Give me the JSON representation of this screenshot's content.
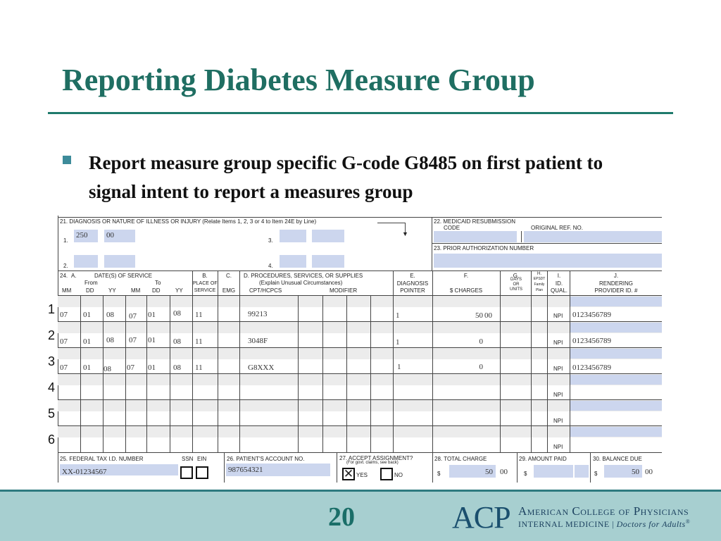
{
  "slide": {
    "title": "Reporting Diabetes Measure Group",
    "bullet": "Report measure group specific G-code G8485 on first patient to signal intent to report a measures group",
    "page_number": "20"
  },
  "form": {
    "box21_label": "21. DIAGNOSIS OR NATURE OF ILLNESS OR INJURY (Relate Items 1, 2, 3 or 4 to Item 24E by Line)",
    "dx_nums": [
      "1.",
      "2.",
      "3.",
      "4."
    ],
    "dx1_a": "250",
    "dx1_b": "00",
    "box22_label": "22. MEDICAID RESUBMISSION",
    "box22_code": "CODE",
    "box22_ref": "ORIGINAL REF. NO.",
    "box23_label": "23. PRIOR AUTHORIZATION NUMBER",
    "h24": "24.",
    "hA": "A.",
    "h_dates": "DATE(S) OF SERVICE",
    "h_from": "From",
    "h_to": "To",
    "h_mm": "MM",
    "h_dd": "DD",
    "h_yy": "YY",
    "hB": "B.",
    "hB1": "PLACE OF",
    "hB2": "SERVICE",
    "hC": "C.",
    "hC1": "EMG",
    "hD": "D. PROCEDURES, SERVICES, OR SUPPLIES",
    "hD1": "(Explain Unusual Circumstances)",
    "hD2": "CPT/HCPCS",
    "hD3": "MODIFIER",
    "hE": "E.",
    "hE1": "DIAGNOSIS",
    "hE2": "POINTER",
    "hF": "F.",
    "hF1": "$ CHARGES",
    "hG": "G.",
    "hG1": "DAYS",
    "hG2": "OR",
    "hG3": "UNITS",
    "hH": "H.",
    "hH1": "EPSDT",
    "hH2": "Family",
    "hH3": "Plan",
    "hI": "I.",
    "hI1": "ID.",
    "hI2": "QUAL.",
    "hJ": "J.",
    "hJ1": "RENDERING",
    "hJ2": "PROVIDER ID. #",
    "npi": "NPI",
    "rows": [
      {
        "num": "1",
        "fmm": "07",
        "fdd": "01",
        "fyy": "08",
        "tmm": "07",
        "tdd": "01",
        "tyy": "08",
        "pos": "11",
        "cpt": "99213",
        "ptr": "1",
        "charge": "50",
        "cents": "00",
        "npi_val": "0123456789"
      },
      {
        "num": "2",
        "fmm": "07",
        "fdd": "01",
        "fyy": "08",
        "tmm": "07",
        "tdd": "01",
        "tyy": "08",
        "pos": "11",
        "cpt": "3048F",
        "ptr": "1",
        "charge": "0",
        "cents": "",
        "npi_val": "0123456789"
      },
      {
        "num": "3",
        "fmm": "07",
        "fdd": "01",
        "fyy": "08",
        "tmm": "07",
        "tdd": "01",
        "tyy": "08",
        "pos": "11",
        "cpt": "G8XXX",
        "ptr": "1",
        "charge": "0",
        "cents": "",
        "npi_val": "0123456789"
      },
      {
        "num": "4"
      },
      {
        "num": "5"
      },
      {
        "num": "6"
      }
    ],
    "box25_label": "25. FEDERAL TAX I.D. NUMBER",
    "ssn": "SSN",
    "ein": "EIN",
    "tax_id": "XX-01234567",
    "box26_label": "26. PATIENT'S ACCOUNT NO.",
    "acct_no": "987654321",
    "box27_label": "27. ACCEPT ASSIGNMENT?",
    "box27_sub": "(For govt. claims, see back)",
    "yes": "YES",
    "no": "NO",
    "box28_label": "28. TOTAL CHARGE",
    "total": "50",
    "total_cents": "00",
    "box29_label": "29. AMOUNT PAID",
    "box30_label": "30. BALANCE DUE",
    "balance": "50",
    "balance_cents": "00",
    "dollar": "$"
  },
  "footer": {
    "logo": "ACP",
    "org_name": "American College of Physicians",
    "tagline_a": "INTERNAL MEDICINE",
    "tagline_sep": "|",
    "tagline_b": "Doctors for Adults",
    "reg": "®"
  }
}
